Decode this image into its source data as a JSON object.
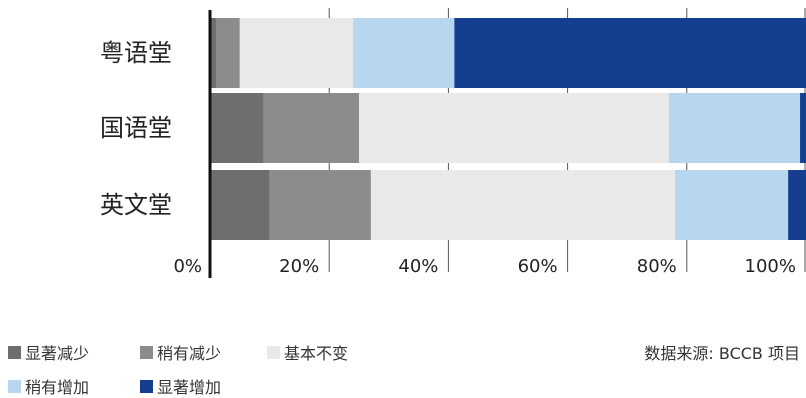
{
  "chart_data": {
    "type": "bar",
    "orientation": "horizontal",
    "stacked": true,
    "categories": [
      "粤语堂",
      "国语堂",
      "英文堂"
    ],
    "series": [
      {
        "name": "显著减少",
        "color": "#6e6e6c",
        "values": [
          1,
          9,
          10
        ]
      },
      {
        "name": "稍有减少",
        "color": "#8c8c8c",
        "values": [
          4,
          16,
          17
        ]
      },
      {
        "name": "基本不变",
        "color": "#e9e9e9",
        "values": [
          19,
          52,
          51
        ]
      },
      {
        "name": "稍有增加",
        "color": "#b7d7f1",
        "values": [
          17,
          22,
          19
        ]
      },
      {
        "name": "显著增加",
        "color": "#163e8f",
        "values": [
          59,
          1,
          3
        ]
      }
    ],
    "xticks": [
      "0%",
      "20%",
      "40%",
      "60%",
      "80%",
      "100%"
    ],
    "xlim": [
      0,
      100
    ],
    "grid": false,
    "legend_position": "bottom"
  },
  "source": "数据来源: BCCB 项目"
}
